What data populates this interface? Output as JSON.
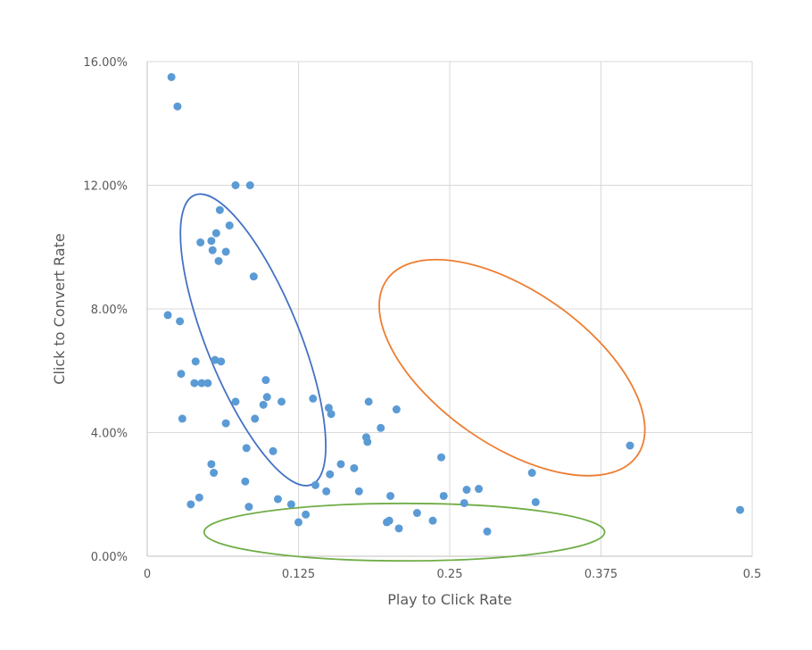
{
  "chart_data": {
    "type": "scatter",
    "xlabel": "Play to Click Rate",
    "ylabel": "Click to Convert Rate",
    "xlim": [
      0,
      0.5
    ],
    "ylim": [
      0,
      0.16
    ],
    "x_ticks": [
      "0",
      "0.125",
      "0.25",
      "0.375",
      "0.5"
    ],
    "y_ticks": [
      "0.00%",
      "4.00%",
      "8.00%",
      "12.00%",
      "16.00%"
    ],
    "grid": true,
    "legend": "none",
    "point_color": "#5b9bd5",
    "points": [
      [
        0.02,
        0.155
      ],
      [
        0.025,
        0.1455
      ],
      [
        0.073,
        0.12
      ],
      [
        0.085,
        0.12
      ],
      [
        0.06,
        0.112
      ],
      [
        0.068,
        0.107
      ],
      [
        0.057,
        0.1045
      ],
      [
        0.044,
        0.1015
      ],
      [
        0.053,
        0.102
      ],
      [
        0.054,
        0.099
      ],
      [
        0.065,
        0.0985
      ],
      [
        0.059,
        0.0955
      ],
      [
        0.088,
        0.0905
      ],
      [
        0.017,
        0.078
      ],
      [
        0.027,
        0.076
      ],
      [
        0.04,
        0.063
      ],
      [
        0.056,
        0.0635
      ],
      [
        0.061,
        0.063
      ],
      [
        0.028,
        0.059
      ],
      [
        0.098,
        0.057
      ],
      [
        0.039,
        0.056
      ],
      [
        0.045,
        0.056
      ],
      [
        0.05,
        0.056
      ],
      [
        0.099,
        0.0515
      ],
      [
        0.096,
        0.049
      ],
      [
        0.073,
        0.05
      ],
      [
        0.111,
        0.05
      ],
      [
        0.137,
        0.051
      ],
      [
        0.15,
        0.048
      ],
      [
        0.152,
        0.046
      ],
      [
        0.183,
        0.05
      ],
      [
        0.206,
        0.0475
      ],
      [
        0.089,
        0.0445
      ],
      [
        0.029,
        0.0445
      ],
      [
        0.065,
        0.043
      ],
      [
        0.193,
        0.0415
      ],
      [
        0.181,
        0.0385
      ],
      [
        0.182,
        0.037
      ],
      [
        0.082,
        0.035
      ],
      [
        0.104,
        0.034
      ],
      [
        0.243,
        0.032
      ],
      [
        0.399,
        0.0358
      ],
      [
        0.053,
        0.0298
      ],
      [
        0.16,
        0.0298
      ],
      [
        0.055,
        0.027
      ],
      [
        0.171,
        0.0285
      ],
      [
        0.151,
        0.0265
      ],
      [
        0.318,
        0.027
      ],
      [
        0.081,
        0.0242
      ],
      [
        0.139,
        0.023
      ],
      [
        0.148,
        0.021
      ],
      [
        0.175,
        0.021
      ],
      [
        0.264,
        0.0215
      ],
      [
        0.274,
        0.0218
      ],
      [
        0.043,
        0.019
      ],
      [
        0.108,
        0.0185
      ],
      [
        0.201,
        0.0195
      ],
      [
        0.245,
        0.0195
      ],
      [
        0.262,
        0.0172
      ],
      [
        0.321,
        0.0175
      ],
      [
        0.036,
        0.0168
      ],
      [
        0.084,
        0.016
      ],
      [
        0.119,
        0.0168
      ],
      [
        0.131,
        0.0135
      ],
      [
        0.125,
        0.011
      ],
      [
        0.223,
        0.014
      ],
      [
        0.236,
        0.0115
      ],
      [
        0.198,
        0.011
      ],
      [
        0.2,
        0.0115
      ],
      [
        0.208,
        0.009
      ],
      [
        0.281,
        0.008
      ],
      [
        0.49,
        0.015
      ]
    ],
    "annotations": [
      {
        "shape": "ellipse",
        "color": "#4472c4",
        "cx": 0.0875,
        "cy": 0.07,
        "rx": 0.0385,
        "ry": 0.0505,
        "rotate": -22
      },
      {
        "shape": "ellipse",
        "color": "#ed7d31",
        "cx": 0.3015,
        "cy": 0.061,
        "rx": 0.0635,
        "ry": 0.0495,
        "rotate": -55
      },
      {
        "shape": "ellipse",
        "color": "#70ad47",
        "cx": 0.2125,
        "cy": 0.0078,
        "rx": 0.1655,
        "ry": 0.0093,
        "rotate": 0
      }
    ]
  }
}
